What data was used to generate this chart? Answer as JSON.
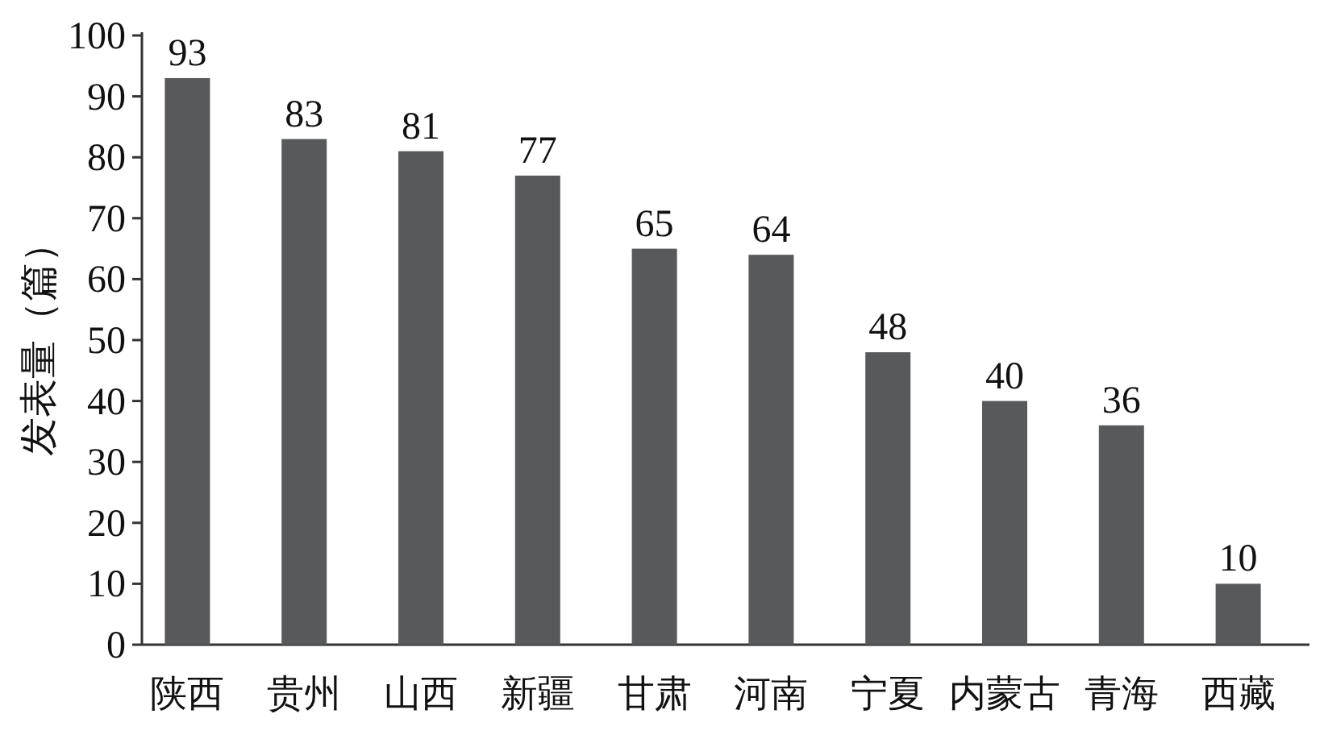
{
  "chart_data": {
    "type": "bar",
    "ylabel": "发表量（篇）",
    "categories": [
      "陕西",
      "贵州",
      "山西",
      "新疆",
      "甘肃",
      "河南",
      "宁夏",
      "内蒙古",
      "青海",
      "西藏"
    ],
    "values": [
      93,
      83,
      81,
      77,
      65,
      64,
      48,
      40,
      36,
      10
    ],
    "color": "#58595b",
    "ylim": [
      0,
      100
    ],
    "yticks": [
      0,
      10,
      20,
      30,
      40,
      50,
      60,
      70,
      80,
      90,
      100
    ],
    "data_labels": true
  }
}
